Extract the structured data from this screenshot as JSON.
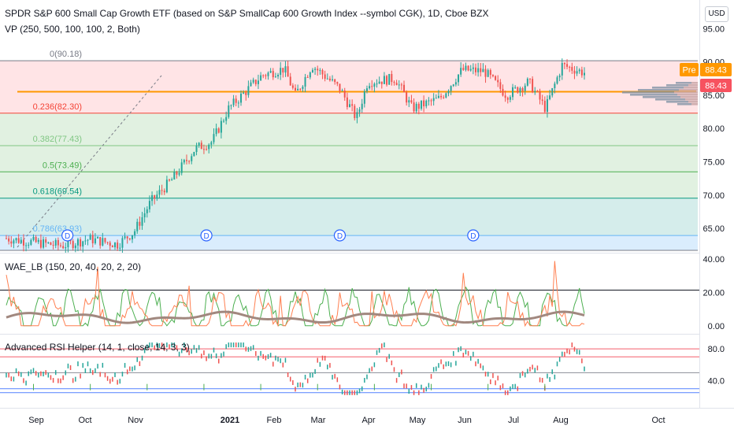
{
  "header": {
    "title": "SPDR S&P 600 Small Cap Growth ETF (based on S&P SmallCap 600 Growth Index --symbol CGK), 1D, Cboe BZX",
    "vp_label": "VP (250, 500, 100, 100, 2, Both)",
    "currency": "USD"
  },
  "colors": {
    "up": "#26a69a",
    "down": "#ef5350",
    "price_line": "#ff9800",
    "pre_badge": "#ff9800",
    "last_badge": "#f7525f"
  },
  "chart_data": [
    {
      "type": "candlestick",
      "title": "",
      "y_axis": {
        "ticks": [
          "95.00",
          "90.00",
          "85.00",
          "80.00",
          "75.00",
          "70.00",
          "65.00"
        ],
        "range": [
          61.7,
          99.3
        ]
      },
      "x_axis": {
        "ticks": [
          "Sep",
          "Oct",
          "Nov",
          "2021",
          "Feb",
          "Mar",
          "Apr",
          "May",
          "Jun",
          "Jul",
          "Aug",
          "Oct"
        ]
      },
      "dividend_markers": [
        "D",
        "D",
        "D",
        "D"
      ],
      "price_path": [
        {
          "t": 0.0,
          "v": 63.5
        },
        {
          "t": 0.06,
          "v": 62.8
        },
        {
          "t": 0.1,
          "v": 62.4
        },
        {
          "t": 0.15,
          "v": 63.4
        },
        {
          "t": 0.2,
          "v": 62.6
        },
        {
          "t": 0.23,
          "v": 64.5
        },
        {
          "t": 0.26,
          "v": 69.0
        },
        {
          "t": 0.3,
          "v": 72.5
        },
        {
          "t": 0.34,
          "v": 77.0
        },
        {
          "t": 0.37,
          "v": 78.0
        },
        {
          "t": 0.4,
          "v": 83.0
        },
        {
          "t": 0.43,
          "v": 85.5
        },
        {
          "t": 0.46,
          "v": 88.0
        },
        {
          "t": 0.5,
          "v": 89.0
        },
        {
          "t": 0.52,
          "v": 85.0
        },
        {
          "t": 0.55,
          "v": 89.5
        },
        {
          "t": 0.6,
          "v": 86.0
        },
        {
          "t": 0.63,
          "v": 81.5
        },
        {
          "t": 0.65,
          "v": 87.0
        },
        {
          "t": 0.7,
          "v": 87.5
        },
        {
          "t": 0.73,
          "v": 83.0
        },
        {
          "t": 0.78,
          "v": 84.5
        },
        {
          "t": 0.82,
          "v": 88.8
        },
        {
          "t": 0.86,
          "v": 88.6
        },
        {
          "t": 0.9,
          "v": 85.0
        },
        {
          "t": 0.94,
          "v": 87.0
        },
        {
          "t": 0.97,
          "v": 83.0
        },
        {
          "t": 1.0,
          "v": 89.5
        },
        {
          "t": 1.04,
          "v": 88.4
        }
      ],
      "price_badges": [
        {
          "label": "Pre",
          "value": "88.43"
        },
        {
          "label": "",
          "value": "88.43"
        }
      ],
      "fib_levels": [
        {
          "label": "0(90.18)",
          "level": 0,
          "price": 90.18,
          "fill": "#ffcdd2",
          "line": "#787b86",
          "text": "#787b86"
        },
        {
          "label": "0.236(82.30)",
          "level": 0.236,
          "price": 82.3,
          "fill": "#c8e6c9",
          "line": "#f44336",
          "text": "#f44336"
        },
        {
          "label": "0.382(77.43)",
          "level": 0.382,
          "price": 77.43,
          "fill": "#c8e6c9",
          "line": "#81c784",
          "text": "#81c784"
        },
        {
          "label": "0.5(73.49)",
          "level": 0.5,
          "price": 73.49,
          "fill": "#c8e6c9",
          "line": "#4caf50",
          "text": "#4caf50"
        },
        {
          "label": "0.618(69.54)",
          "level": 0.618,
          "price": 69.54,
          "fill": "#b2dfdb",
          "line": "#089981",
          "text": "#089981"
        },
        {
          "label": "0.786(63.93)",
          "level": 0.786,
          "price": 63.93,
          "fill": "#bbdefb",
          "line": "#64b5f6",
          "text": "#64b5f6"
        },
        {
          "label": "",
          "level": 1,
          "price": 61.7,
          "fill": "#e0e0e0",
          "line": "#787b86",
          "text": "#787b86"
        }
      ]
    },
    {
      "type": "line",
      "title": "WAE_LB (150, 20, 40, 20, 2, 20)",
      "y_axis": {
        "ticks": [
          "40.00",
          "20.00",
          "0.00"
        ],
        "range": [
          -2,
          42
        ]
      },
      "levels": [
        20
      ],
      "series": []
    },
    {
      "type": "line",
      "title": "Advanced RSI Helper (14, 1, close, 14, 3, 3)",
      "y_axis": {
        "ticks": [
          "80.0",
          "40.0"
        ],
        "range": [
          8,
          95
        ]
      },
      "levels": [
        80,
        70,
        50,
        30,
        25
      ],
      "series": []
    }
  ]
}
